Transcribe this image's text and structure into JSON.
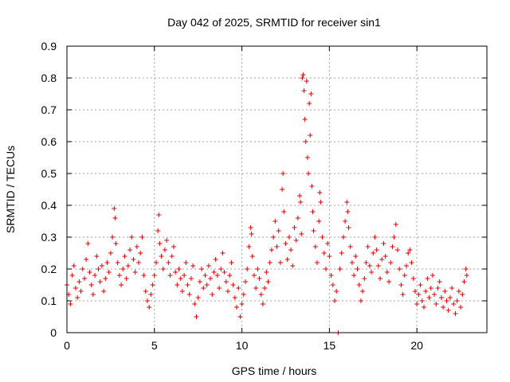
{
  "chart_data": {
    "type": "scatter",
    "title": "Day 042 of 2025, SRMTID for receiver sin1",
    "xlabel": "GPS time / hours",
    "ylabel": "SRMTID / TECUs",
    "xlim": [
      0,
      24
    ],
    "ylim": [
      0,
      0.9
    ],
    "grid": true,
    "marker": "+",
    "color": "#e00000",
    "x_ticks": [
      "0",
      "5",
      "10",
      "15",
      "20"
    ],
    "y_ticks": [
      "0",
      "0.1",
      "0.2",
      "0.3",
      "0.4",
      "0.5",
      "0.6",
      "0.7",
      "0.8",
      "0.9"
    ],
    "series": [
      {
        "name": "sin1",
        "points": [
          [
            0.0,
            0.15
          ],
          [
            0.1,
            0.12
          ],
          [
            0.2,
            0.09
          ],
          [
            0.3,
            0.18
          ],
          [
            0.4,
            0.21
          ],
          [
            0.5,
            0.14
          ],
          [
            0.6,
            0.11
          ],
          [
            0.7,
            0.16
          ],
          [
            0.8,
            0.13
          ],
          [
            0.9,
            0.2
          ],
          [
            1.0,
            0.17
          ],
          [
            1.1,
            0.23
          ],
          [
            1.2,
            0.28
          ],
          [
            1.3,
            0.19
          ],
          [
            1.4,
            0.15
          ],
          [
            1.5,
            0.12
          ],
          [
            1.6,
            0.18
          ],
          [
            1.7,
            0.24
          ],
          [
            1.8,
            0.2
          ],
          [
            1.9,
            0.16
          ],
          [
            2.0,
            0.21
          ],
          [
            2.1,
            0.13
          ],
          [
            2.2,
            0.17
          ],
          [
            2.3,
            0.22
          ],
          [
            2.4,
            0.19
          ],
          [
            2.5,
            0.25
          ],
          [
            2.6,
            0.3
          ],
          [
            2.7,
            0.39
          ],
          [
            2.75,
            0.36
          ],
          [
            2.8,
            0.28
          ],
          [
            2.9,
            0.22
          ],
          [
            3.0,
            0.18
          ],
          [
            3.1,
            0.15
          ],
          [
            3.2,
            0.2
          ],
          [
            3.3,
            0.24
          ],
          [
            3.4,
            0.17
          ],
          [
            3.5,
            0.21
          ],
          [
            3.6,
            0.26
          ],
          [
            3.7,
            0.3
          ],
          [
            3.8,
            0.23
          ],
          [
            3.9,
            0.19
          ],
          [
            4.0,
            0.27
          ],
          [
            4.1,
            0.22
          ],
          [
            4.2,
            0.25
          ],
          [
            4.3,
            0.3
          ],
          [
            4.4,
            0.18
          ],
          [
            4.5,
            0.13
          ],
          [
            4.6,
            0.1
          ],
          [
            4.7,
            0.08
          ],
          [
            4.8,
            0.12
          ],
          [
            4.9,
            0.15
          ],
          [
            5.0,
            0.18
          ],
          [
            5.1,
            0.22
          ],
          [
            5.2,
            0.32
          ],
          [
            5.25,
            0.37
          ],
          [
            5.3,
            0.28
          ],
          [
            5.4,
            0.24
          ],
          [
            5.5,
            0.2
          ],
          [
            5.6,
            0.26
          ],
          [
            5.7,
            0.29
          ],
          [
            5.8,
            0.22
          ],
          [
            5.9,
            0.18
          ],
          [
            6.0,
            0.24
          ],
          [
            6.1,
            0.27
          ],
          [
            6.2,
            0.19
          ],
          [
            6.3,
            0.15
          ],
          [
            6.4,
            0.2
          ],
          [
            6.5,
            0.17
          ],
          [
            6.6,
            0.13
          ],
          [
            6.7,
            0.18
          ],
          [
            6.8,
            0.22
          ],
          [
            6.9,
            0.15
          ],
          [
            7.0,
            0.12
          ],
          [
            7.1,
            0.17
          ],
          [
            7.2,
            0.21
          ],
          [
            7.3,
            0.09
          ],
          [
            7.4,
            0.05
          ],
          [
            7.5,
            0.11
          ],
          [
            7.6,
            0.16
          ],
          [
            7.7,
            0.2
          ],
          [
            7.8,
            0.14
          ],
          [
            7.9,
            0.18
          ],
          [
            8.0,
            0.15
          ],
          [
            8.1,
            0.21
          ],
          [
            8.2,
            0.17
          ],
          [
            8.3,
            0.12
          ],
          [
            8.4,
            0.19
          ],
          [
            8.5,
            0.23
          ],
          [
            8.6,
            0.18
          ],
          [
            8.7,
            0.14
          ],
          [
            8.8,
            0.2
          ],
          [
            8.9,
            0.25
          ],
          [
            9.0,
            0.19
          ],
          [
            9.1,
            0.16
          ],
          [
            9.2,
            0.13
          ],
          [
            9.3,
            0.18
          ],
          [
            9.4,
            0.22
          ],
          [
            9.5,
            0.15
          ],
          [
            9.6,
            0.11
          ],
          [
            9.7,
            0.08
          ],
          [
            9.8,
            0.14
          ],
          [
            9.9,
            0.05
          ],
          [
            10.0,
            0.09
          ],
          [
            10.1,
            0.12
          ],
          [
            10.2,
            0.16
          ],
          [
            10.3,
            0.2
          ],
          [
            10.4,
            0.27
          ],
          [
            10.5,
            0.33
          ],
          [
            10.55,
            0.31
          ],
          [
            10.6,
            0.24
          ],
          [
            10.7,
            0.18
          ],
          [
            10.8,
            0.14
          ],
          [
            10.9,
            0.2
          ],
          [
            11.0,
            0.17
          ],
          [
            11.1,
            0.12
          ],
          [
            11.2,
            0.09
          ],
          [
            11.3,
            0.14
          ],
          [
            11.4,
            0.19
          ],
          [
            11.5,
            0.16
          ],
          [
            11.6,
            0.22
          ],
          [
            11.7,
            0.26
          ],
          [
            11.8,
            0.3
          ],
          [
            11.9,
            0.35
          ],
          [
            12.0,
            0.27
          ],
          [
            12.1,
            0.32
          ],
          [
            12.2,
            0.22
          ],
          [
            12.3,
            0.45
          ],
          [
            12.35,
            0.5
          ],
          [
            12.4,
            0.38
          ],
          [
            12.5,
            0.28
          ],
          [
            12.6,
            0.23
          ],
          [
            12.7,
            0.3
          ],
          [
            12.8,
            0.26
          ],
          [
            12.9,
            0.21
          ],
          [
            13.0,
            0.33
          ],
          [
            13.1,
            0.29
          ],
          [
            13.2,
            0.36
          ],
          [
            13.3,
            0.43
          ],
          [
            13.35,
            0.41
          ],
          [
            13.4,
            0.31
          ],
          [
            13.45,
            0.8
          ],
          [
            13.5,
            0.81
          ],
          [
            13.55,
            0.76
          ],
          [
            13.6,
            0.67
          ],
          [
            13.65,
            0.6
          ],
          [
            13.7,
            0.79
          ],
          [
            13.75,
            0.55
          ],
          [
            13.8,
            0.5
          ],
          [
            13.85,
            0.72
          ],
          [
            13.9,
            0.62
          ],
          [
            13.95,
            0.75
          ],
          [
            14.0,
            0.46
          ],
          [
            14.05,
            0.38
          ],
          [
            14.1,
            0.32
          ],
          [
            14.2,
            0.27
          ],
          [
            14.3,
            0.22
          ],
          [
            14.4,
            0.35
          ],
          [
            14.45,
            0.44
          ],
          [
            14.5,
            0.41
          ],
          [
            14.6,
            0.3
          ],
          [
            14.7,
            0.25
          ],
          [
            14.8,
            0.2
          ],
          [
            14.9,
            0.28
          ],
          [
            15.0,
            0.24
          ],
          [
            15.1,
            0.18
          ],
          [
            15.2,
            0.15
          ],
          [
            15.3,
            0.1
          ],
          [
            15.4,
            0.13
          ],
          [
            15.5,
            0.0
          ],
          [
            15.6,
            0.2
          ],
          [
            15.7,
            0.25
          ],
          [
            15.8,
            0.3
          ],
          [
            15.9,
            0.35
          ],
          [
            16.0,
            0.41
          ],
          [
            16.05,
            0.38
          ],
          [
            16.1,
            0.33
          ],
          [
            16.2,
            0.27
          ],
          [
            16.3,
            0.22
          ],
          [
            16.4,
            0.18
          ],
          [
            16.5,
            0.24
          ],
          [
            16.6,
            0.2
          ],
          [
            16.7,
            0.15
          ],
          [
            16.8,
            0.1
          ],
          [
            16.9,
            0.13
          ],
          [
            17.0,
            0.17
          ],
          [
            17.1,
            0.22
          ],
          [
            17.2,
            0.27
          ],
          [
            17.3,
            0.21
          ],
          [
            17.4,
            0.19
          ],
          [
            17.5,
            0.25
          ],
          [
            17.6,
            0.3
          ],
          [
            17.7,
            0.26
          ],
          [
            17.8,
            0.21
          ],
          [
            17.9,
            0.17
          ],
          [
            18.0,
            0.23
          ],
          [
            18.1,
            0.28
          ],
          [
            18.2,
            0.24
          ],
          [
            18.3,
            0.19
          ],
          [
            18.4,
            0.16
          ],
          [
            18.5,
            0.22
          ],
          [
            18.6,
            0.27
          ],
          [
            18.7,
            0.3
          ],
          [
            18.8,
            0.34
          ],
          [
            18.9,
            0.26
          ],
          [
            19.0,
            0.2
          ],
          [
            19.1,
            0.15
          ],
          [
            19.2,
            0.12
          ],
          [
            19.3,
            0.18
          ],
          [
            19.4,
            0.21
          ],
          [
            19.5,
            0.25
          ],
          [
            19.6,
            0.26
          ],
          [
            19.7,
            0.22
          ],
          [
            19.8,
            0.17
          ],
          [
            19.9,
            0.13
          ],
          [
            20.0,
            0.09
          ],
          [
            20.1,
            0.12
          ],
          [
            20.2,
            0.15
          ],
          [
            20.3,
            0.1
          ],
          [
            20.4,
            0.08
          ],
          [
            20.5,
            0.13
          ],
          [
            20.6,
            0.17
          ],
          [
            20.7,
            0.11
          ],
          [
            20.8,
            0.14
          ],
          [
            20.9,
            0.18
          ],
          [
            21.0,
            0.12
          ],
          [
            21.1,
            0.09
          ],
          [
            21.2,
            0.14
          ],
          [
            21.3,
            0.16
          ],
          [
            21.4,
            0.11
          ],
          [
            21.5,
            0.08
          ],
          [
            21.6,
            0.13
          ],
          [
            21.7,
            0.1
          ],
          [
            21.8,
            0.07
          ],
          [
            21.9,
            0.11
          ],
          [
            22.0,
            0.14
          ],
          [
            22.1,
            0.09
          ],
          [
            22.2,
            0.06
          ],
          [
            22.3,
            0.1
          ],
          [
            22.4,
            0.13
          ],
          [
            22.5,
            0.08
          ],
          [
            22.6,
            0.12
          ],
          [
            22.7,
            0.16
          ],
          [
            22.8,
            0.2
          ],
          [
            22.85,
            0.18
          ]
        ]
      }
    ]
  }
}
